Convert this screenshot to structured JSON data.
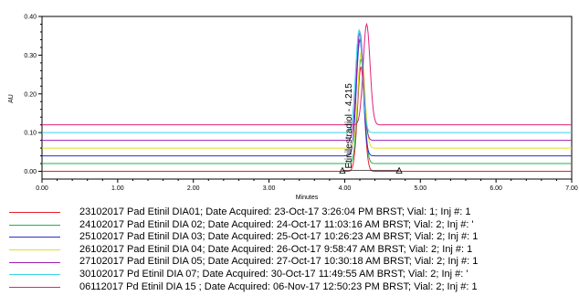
{
  "chart_data": {
    "type": "line",
    "xlabel": "Minutes",
    "ylabel": "AU",
    "xlim": [
      0,
      7
    ],
    "ylim": [
      -0.02,
      0.4
    ],
    "x_ticks": [
      "0.00",
      "1.00",
      "2.00",
      "3.00",
      "4.00",
      "5.00",
      "6.00",
      "7.00"
    ],
    "y_ticks": [
      "0.00",
      "0.10",
      "0.20",
      "0.30",
      "0.40"
    ],
    "peak_annotation": {
      "label": "Etinilestradiol - 4.215",
      "x": 4.215
    },
    "integration_marks": [
      3.97,
      4.72
    ],
    "series": [
      {
        "name": "23102017 Pad Etinil DIA01;   Date Acquired: 23-Oct-17 3:26:04 PM BRST;   Vial: 1;   Inj #: 1",
        "color": "#e8202a",
        "baseline": 0.0,
        "peak_x": 4.215,
        "peak_height": 0.27
      },
      {
        "name": "24102017 Pad Etinil DIA 02;   Date Acquired: 24-Oct-17 11:03:16 AM BRST;   Vial: 2;   Inj #: '",
        "color": "#22b24c",
        "baseline": 0.02,
        "peak_x": 4.215,
        "peak_height": 0.27
      },
      {
        "name": "25102017 Pad Etinil DIA 03;   Date Acquired: 25-Oct-17 10:26:23 AM BRST;   Vial: 2;   Inj #: 1",
        "color": "#2a2fd0",
        "baseline": 0.04,
        "peak_x": 4.2,
        "peak_height": 0.3
      },
      {
        "name": "26102017 Pad Etinil DIA 04;   Date Acquired: 26-Oct-17 9:58:47 AM BRST;   Vial: 2;   Inj #: 1",
        "color": "#e8e01a",
        "baseline": 0.06,
        "peak_x": 4.22,
        "peak_height": 0.25
      },
      {
        "name": "27102017 Pad Etinil DIA 05;   Date Acquired: 27-Oct-17 10:30:18 AM BRST;   Vial: 2;   Inj #: 1",
        "color": "#a020b0",
        "baseline": 0.08,
        "peak_x": 4.2,
        "peak_height": 0.28
      },
      {
        "name": "30102017 Pd Etinil DIA 07;   Date Acquired: 30-Oct-17 11:49:55 AM BRST;   Vial: 2;   Inj #: '",
        "color": "#3ad4e8",
        "baseline": 0.1,
        "peak_x": 4.19,
        "peak_height": 0.265
      },
      {
        "name": "06112017 Pd Etinil DIA 15 ;   Date Acquired: 06-Nov-17 12:50:23 PM BRST;   Vial: 2;   Inj #: 1",
        "color": "#e2227a",
        "baseline": 0.12,
        "peak_x": 4.29,
        "peak_height": 0.26
      }
    ]
  }
}
